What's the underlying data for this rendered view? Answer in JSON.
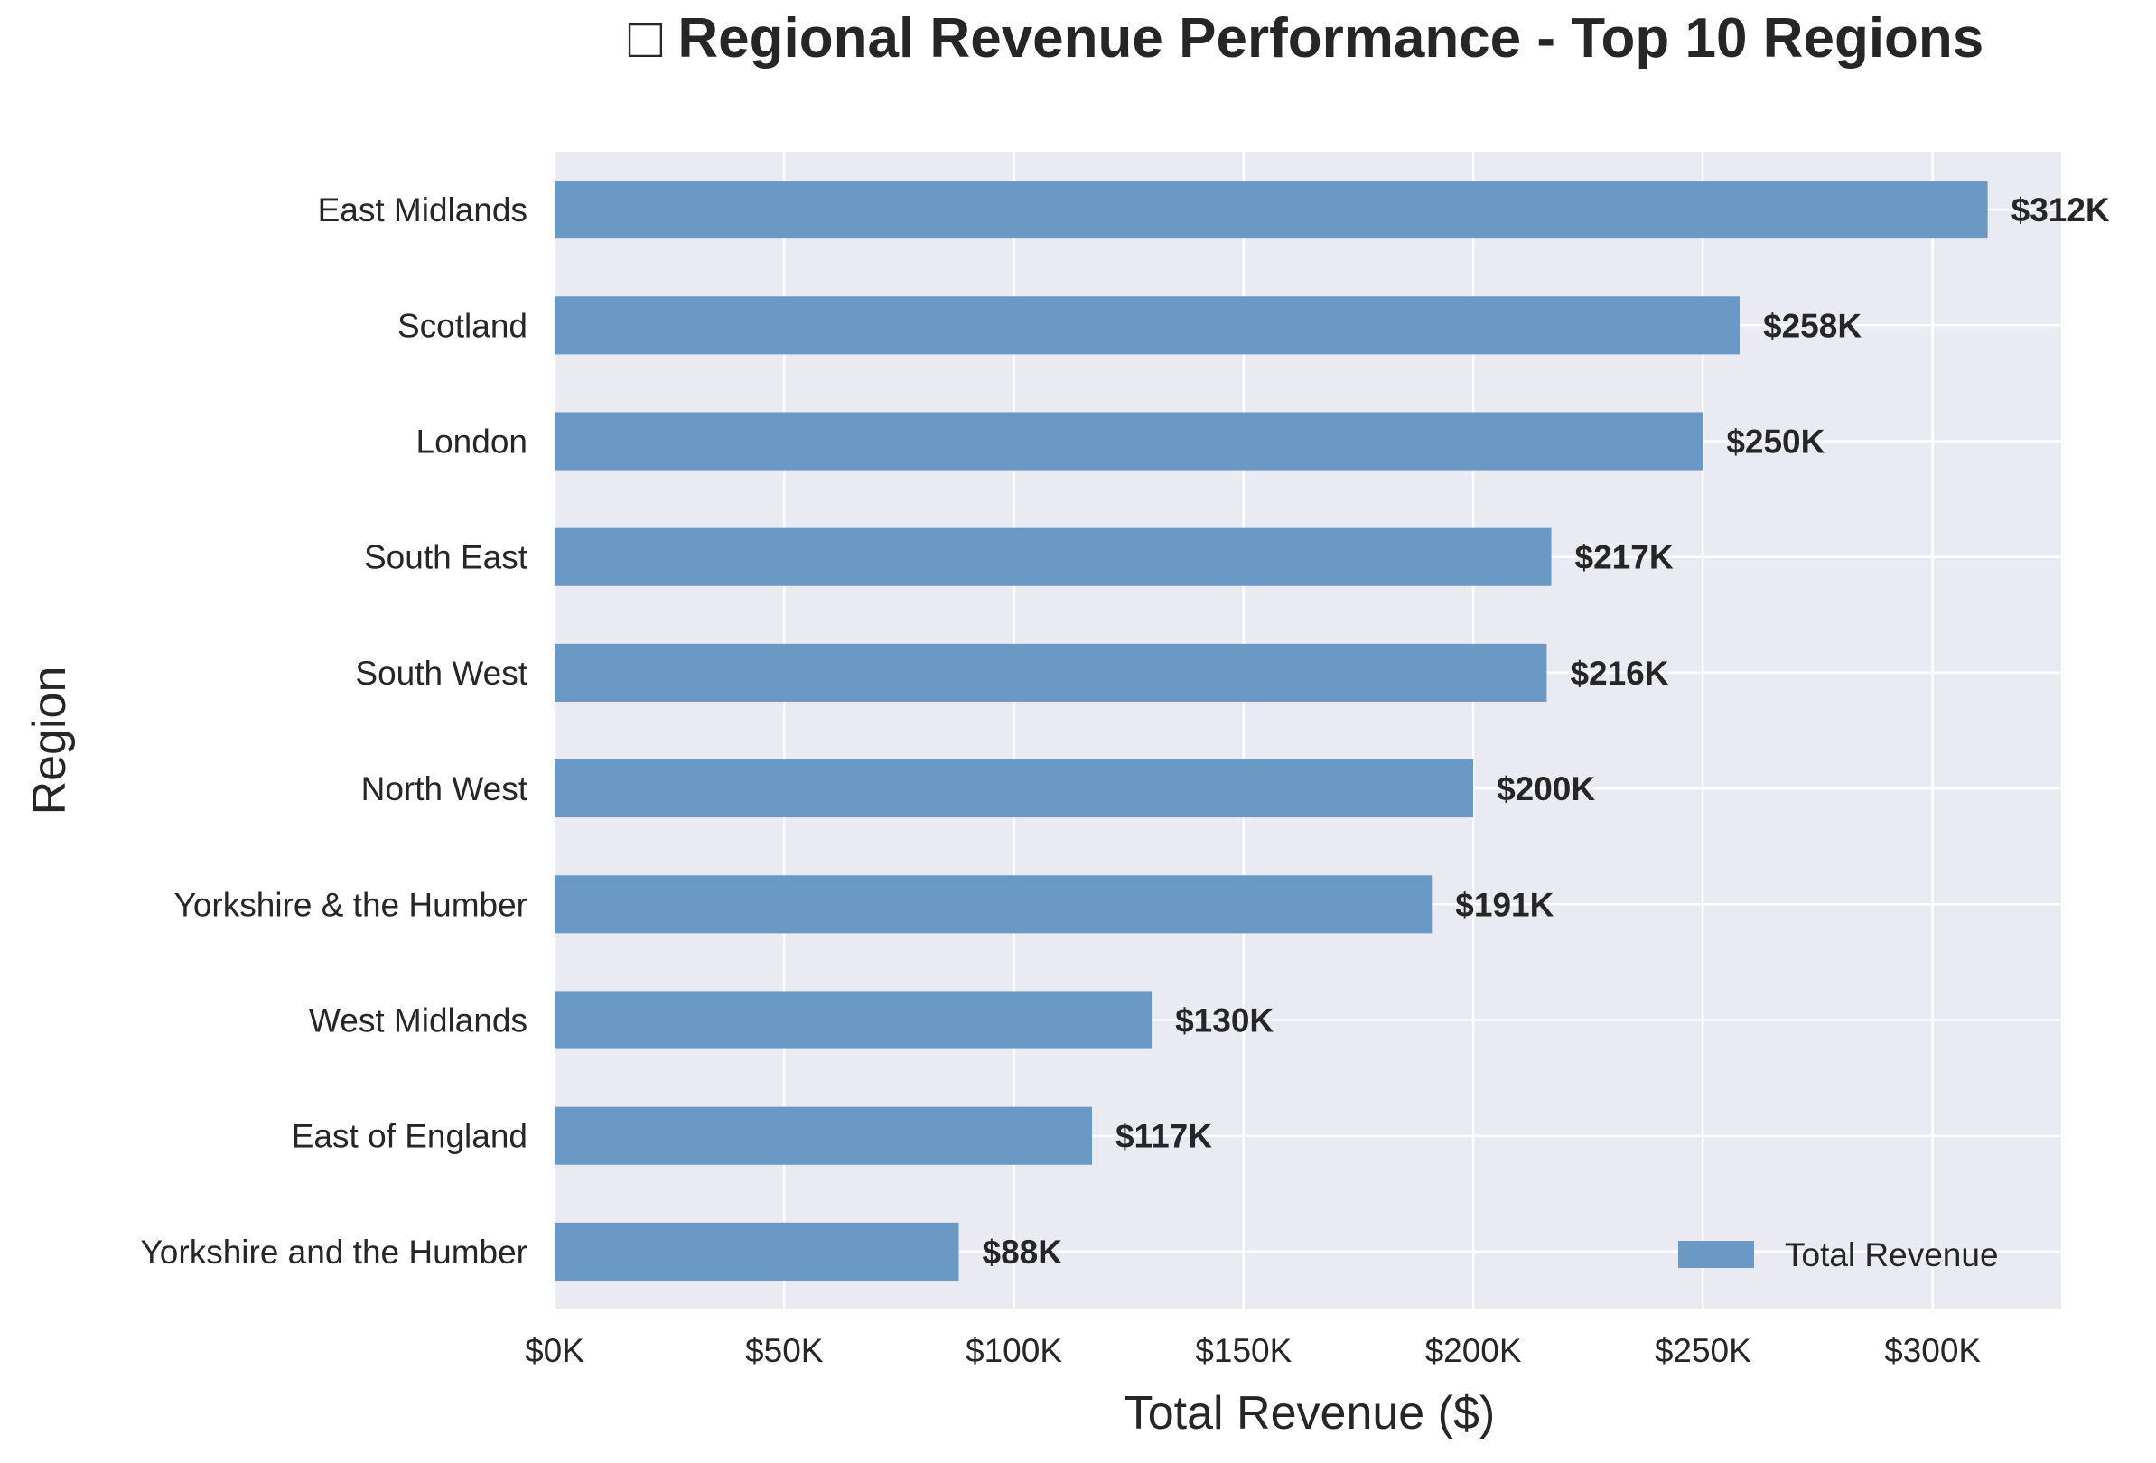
{
  "chart_data": {
    "type": "bar",
    "orientation": "horizontal",
    "title_icon": "□",
    "title": "Regional Revenue Performance - Top 10 Regions",
    "xlabel": "Total Revenue ($)",
    "ylabel": "Region",
    "categories": [
      "East Midlands",
      "Scotland",
      "London",
      "South East",
      "South West",
      "North West",
      "Yorkshire & the Humber",
      "West Midlands",
      "East of England",
      "Yorkshire and the Humber"
    ],
    "series": [
      {
        "name": "Total Revenue",
        "values": [
          312000,
          258000,
          250000,
          217000,
          216000,
          200000,
          191000,
          130000,
          117000,
          88000
        ],
        "data_labels": [
          "$312K",
          "$258K",
          "$250K",
          "$217K",
          "$216K",
          "$200K",
          "$191K",
          "$130K",
          "$117K",
          "$88K"
        ],
        "color": "#6a99c5"
      }
    ],
    "xlim": [
      0,
      328000
    ],
    "xticks": [
      0,
      50000,
      100000,
      150000,
      200000,
      250000,
      300000
    ],
    "xtick_labels": [
      "$0K",
      "$50K",
      "$100K",
      "$150K",
      "$200K",
      "$250K",
      "$300K"
    ],
    "grid": true,
    "legend_position": "bottom-right",
    "colors": {
      "plot_background": "#eaeaf2",
      "grid": "#ffffff",
      "text": "#262626",
      "bar": "#6a99c5"
    }
  }
}
